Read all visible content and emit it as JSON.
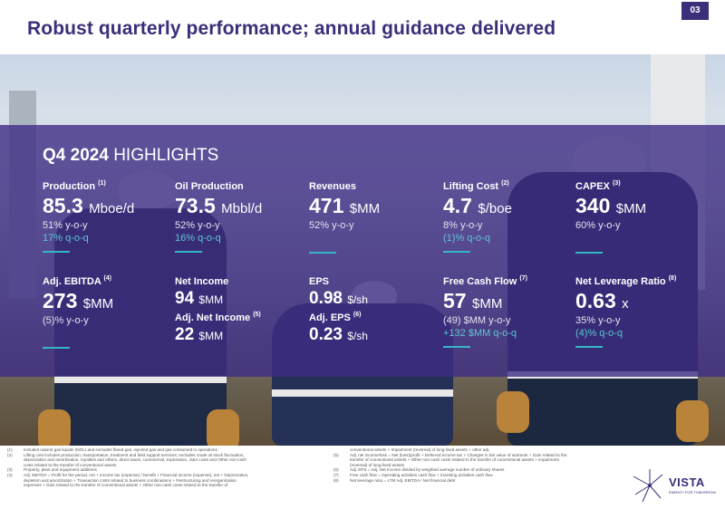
{
  "header": {
    "title": "Robust quarterly performance; annual guidance delivered",
    "page_number": "03"
  },
  "highlights": {
    "title_bold": "Q4 2024",
    "title_rest": "HIGHLIGHTS",
    "kpis": [
      {
        "label": "Production",
        "note": "(1)",
        "value": "85.3",
        "unit": "Mboe/d",
        "lines": [
          "51% y-o-y"
        ],
        "accent_lines": [
          "17% q-o-q"
        ]
      },
      {
        "label": "Oil Production",
        "note": "",
        "value": "73.5",
        "unit": "Mbbl/d",
        "lines": [
          "52% y-o-y"
        ],
        "accent_lines": [
          "16% q-o-q"
        ]
      },
      {
        "label": "Revenues",
        "note": "",
        "value": "471",
        "unit": "$MM",
        "lines": [
          "52% y-o-y"
        ],
        "accent_lines": []
      },
      {
        "label": "Lifting Cost",
        "note": "(2)",
        "value": "4.7",
        "unit": "$/boe",
        "lines": [
          "8% y-o-y"
        ],
        "accent_lines": [
          "(1)% q-o-q"
        ]
      },
      {
        "label": "CAPEX",
        "note": "(3)",
        "value": "340",
        "unit": "$MM",
        "lines": [
          "60% y-o-y"
        ],
        "accent_lines": []
      },
      {
        "label": "Adj. EBITDA",
        "note": "(4)",
        "value": "273",
        "unit": "$MM",
        "lines": [
          "(5)% y-o-y"
        ],
        "accent_lines": []
      },
      {
        "label": "Net Income",
        "note": "",
        "value": "94",
        "unit": "$MM",
        "lines": [],
        "accent_lines": []
      },
      {
        "label": "Adj. Net Income",
        "note": "(5)",
        "value": "22",
        "unit": "$MM",
        "lines": [],
        "accent_lines": []
      },
      {
        "label": "EPS",
        "note": "",
        "value": "0.98",
        "unit": "$/sh",
        "lines": [],
        "accent_lines": []
      },
      {
        "label": "Adj. EPS",
        "note": "(6)",
        "value": "0.23",
        "unit": "$/sh",
        "lines": [],
        "accent_lines": []
      },
      {
        "label": "Free Cash Flow",
        "note": "(7)",
        "value": "57",
        "unit": "$MM",
        "lines": [
          "(49) $MM y-o-y"
        ],
        "accent_lines": [
          "+132 $MM q-o-q"
        ]
      },
      {
        "label": "Net Leverage Ratio",
        "note": "(8)",
        "value": "0.63",
        "unit": "x",
        "lines": [
          "35% y-o-y"
        ],
        "accent_lines": [
          "(4)% q-o-q"
        ]
      }
    ]
  },
  "footnotes": [
    {
      "n": "(1)",
      "text": "Includes natural gas liquids (NGL) and excludes flared gas, injected gas and gas consumed in operations"
    },
    {
      "n": "(2)",
      "text": "Lifting cost includes production, transportation, treatment and field support services; excludes crude oil stock fluctuation,"
    },
    {
      "n": "",
      "text": "depreciation and amortization, royalties and others, direct taxes, commercial, exploration, G&A costs and Other non-cash"
    },
    {
      "n": "",
      "text": "costs related to the transfer of conventional assets"
    },
    {
      "n": "(3)",
      "text": "Property, plant and equipment additions"
    },
    {
      "n": "(4)",
      "text": "Adj. EBITDA = Profit for the period, net + Income tax (expense) / benefit + Financial income (expense), net + Depreciation,"
    },
    {
      "n": "",
      "text": "depletion and amortization + Transaction costs related to business combinations + Restructuring and reorganization"
    },
    {
      "n": "",
      "text": "expenses + Gain related to the transfer of conventional assets + Other non-cash costs related to the transfer of"
    },
    {
      "n": "",
      "text": "conventional assets + Impairment (reversal) of long-lived assets + other adj."
    },
    {
      "n": "(5)",
      "text": "Adj. net income/loss = Net (loss)/profit + Deferred income tax + Changes in fair value of warrants + Gain related to the"
    },
    {
      "n": "",
      "text": "transfer of conventional assets + Other non-cash costs related to the transfer of conventional assets + impairment"
    },
    {
      "n": "",
      "text": "(reversal) of long-lived assets"
    },
    {
      "n": "(6)",
      "text": "Adj. EPS = Adj. Net Income divided by weighted average number of ordinary shares"
    },
    {
      "n": "(7)",
      "text": "Free cash flow = Operating activities cash flow + Investing activities cash flow"
    },
    {
      "n": "(8)",
      "text": "Net leverage ratio = LTM Adj. EBITDA / Net financial debt"
    }
  ],
  "logo": {
    "name": "VISTA",
    "tagline": "ENERGY FOR TOMORROW"
  },
  "colors": {
    "brand": "#3b2f7a",
    "accent": "#35b6c4",
    "panel": "#3e2d84"
  }
}
